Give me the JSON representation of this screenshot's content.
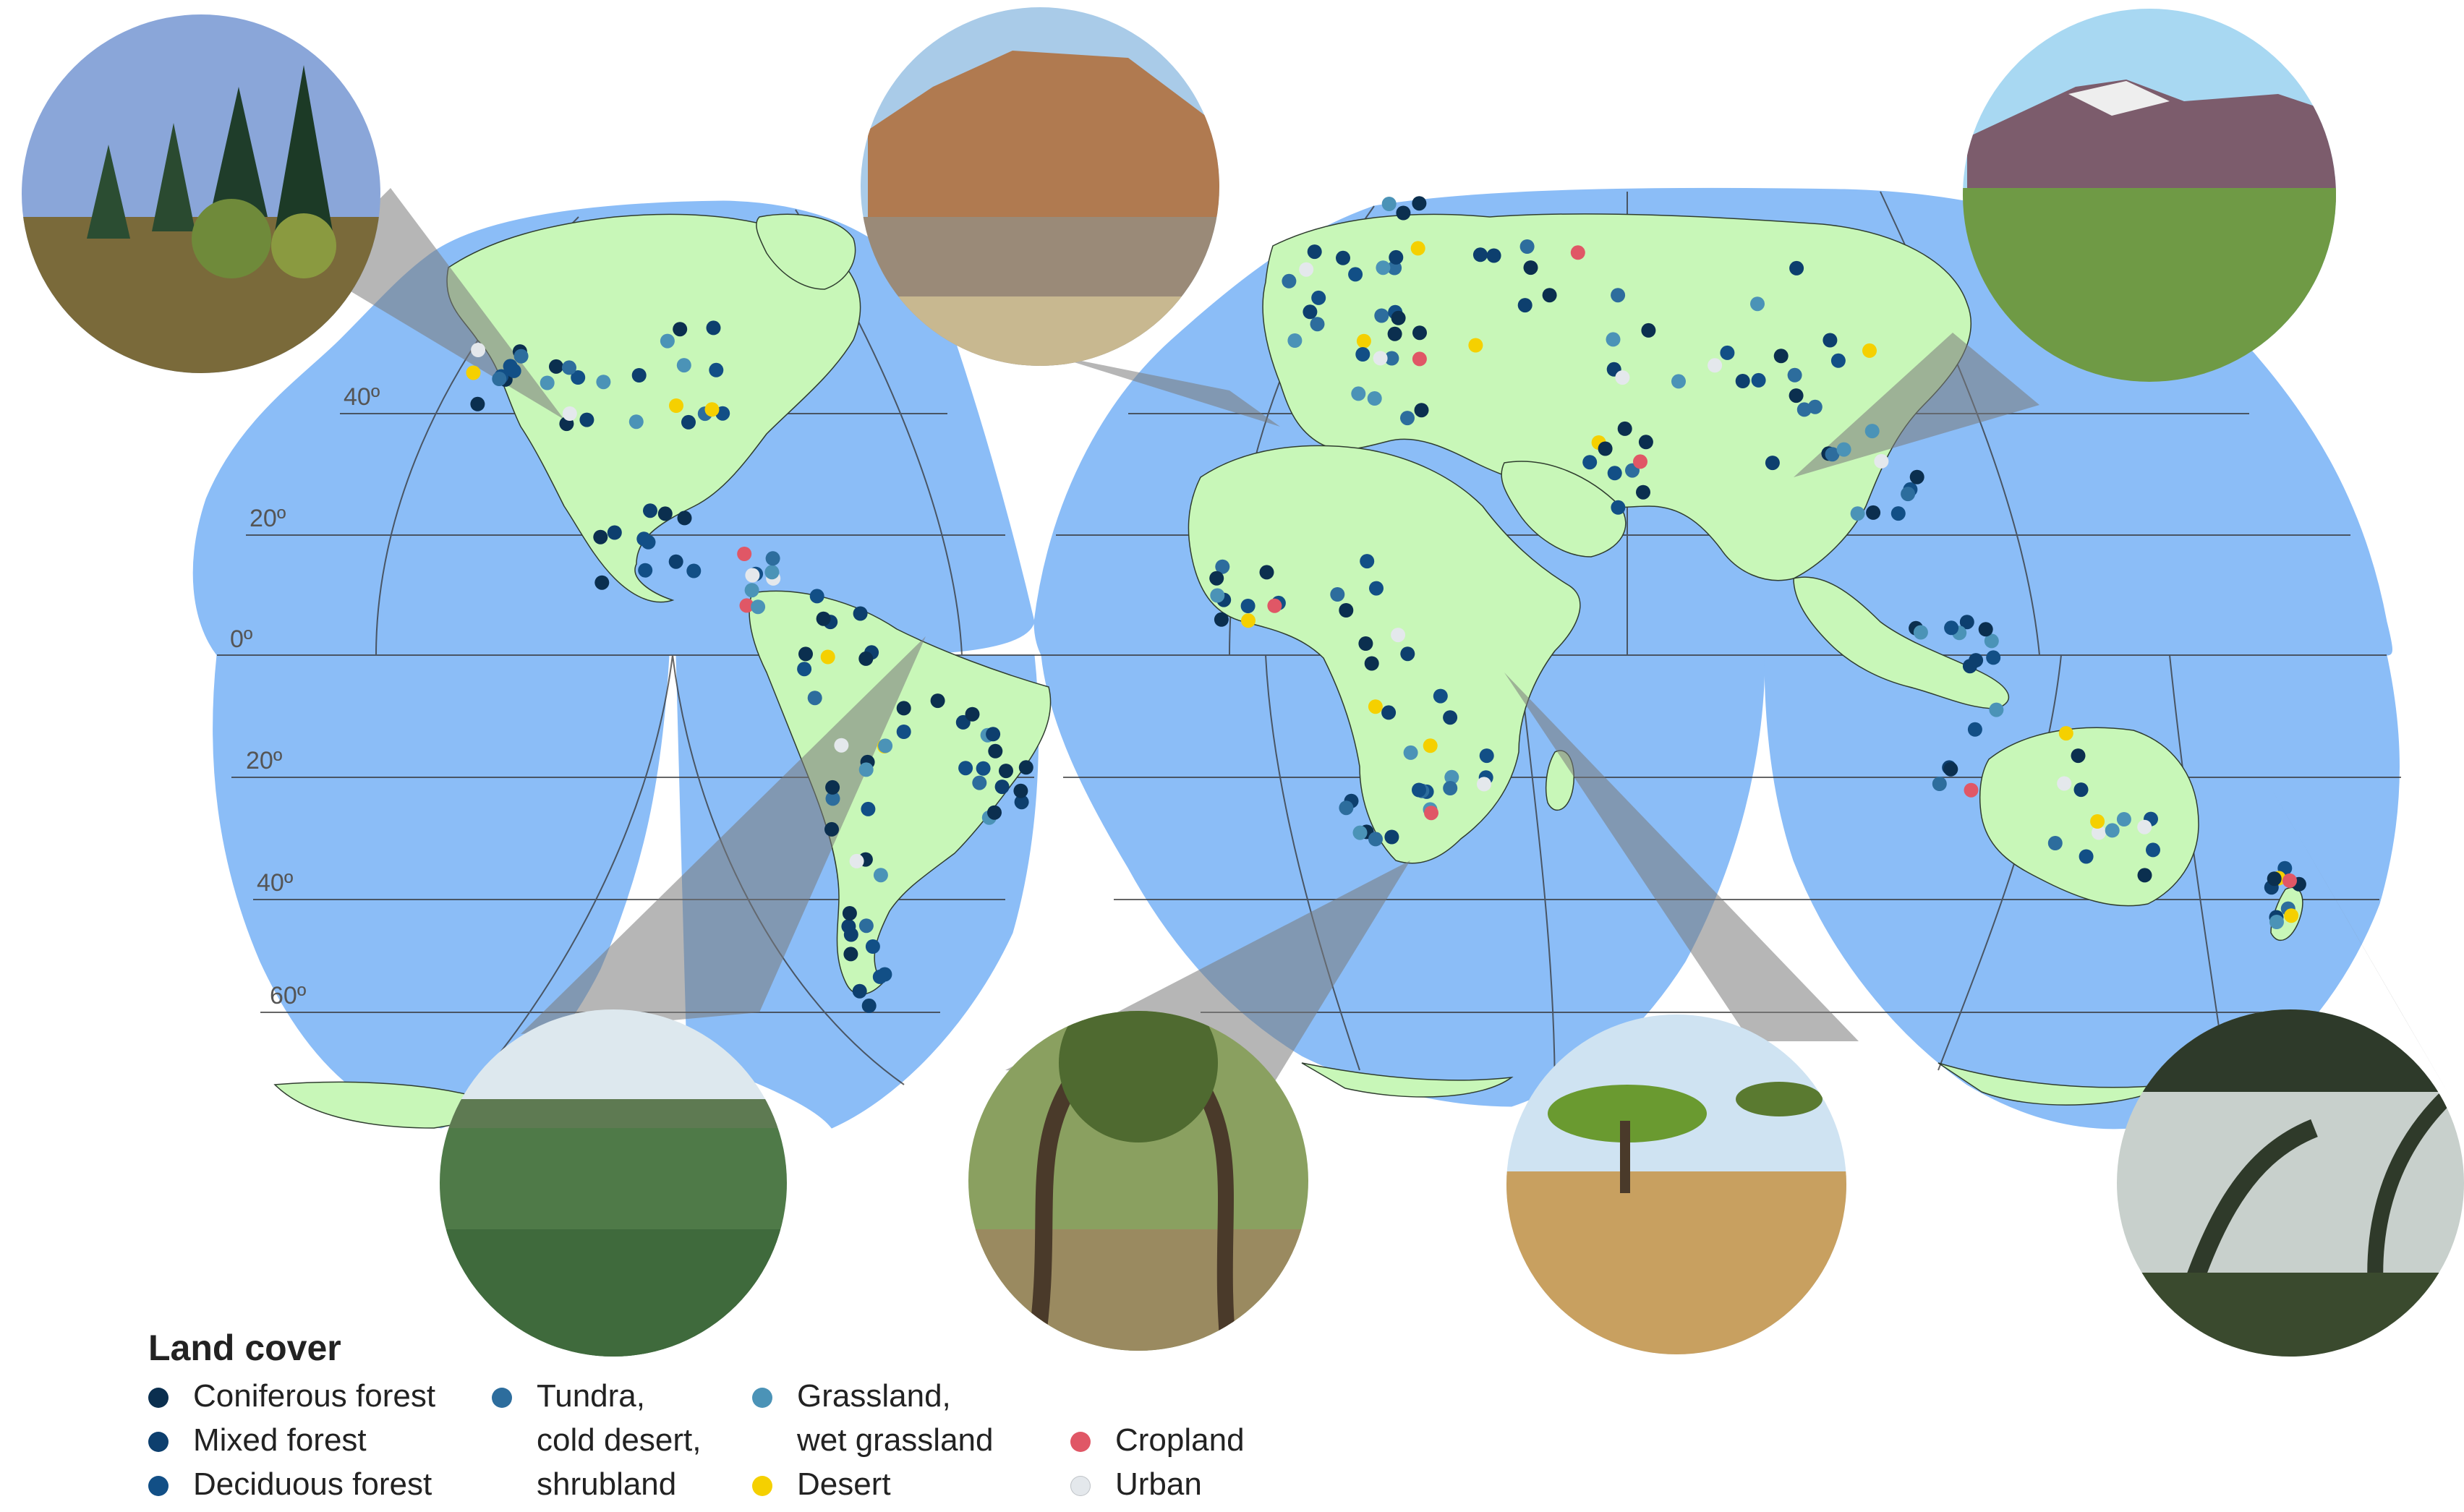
{
  "map": {
    "projection": "interrupted-goode-homolosine",
    "colors": {
      "ocean": "#8bbdf7",
      "land": "#c8f7b8",
      "graticule": "#333333",
      "callout": "#7a7a7a"
    },
    "latitude_labels": [
      {
        "id": "lat-40n",
        "text": "40º"
      },
      {
        "id": "lat-20n",
        "text": "20º"
      },
      {
        "id": "lat-0",
        "text": "0º"
      },
      {
        "id": "lat-20s",
        "text": "20º"
      },
      {
        "id": "lat-40s",
        "text": "40º"
      },
      {
        "id": "lat-60s",
        "text": "60º"
      }
    ],
    "photos": [
      {
        "id": "conifer-forest",
        "icon": "conifer-forest-photo"
      },
      {
        "id": "desert-cliffs",
        "icon": "desert-cliffs-photo"
      },
      {
        "id": "mountain-grassland",
        "icon": "mountain-grassland-photo"
      },
      {
        "id": "wet-grassland",
        "icon": "wet-grassland-photo"
      },
      {
        "id": "woodland",
        "icon": "woodland-photo"
      },
      {
        "id": "savanna",
        "icon": "savanna-photo"
      },
      {
        "id": "cloud-forest",
        "icon": "cloud-forest-photo"
      }
    ]
  },
  "legend": {
    "title": "Land cover",
    "items": [
      {
        "line1": "Coniferous forest",
        "line2": "",
        "line3": "",
        "color": "#0b2f4f"
      },
      {
        "line1": "Mixed forest",
        "line2": "",
        "line3": "",
        "color": "#0d3f6e"
      },
      {
        "line1": "Deciduous forest",
        "line2": "",
        "line3": "",
        "color": "#124f86"
      },
      {
        "line1": "Tundra,",
        "line2": "cold desert,",
        "line3": "shrubland",
        "color": "#2d6d9d"
      },
      {
        "line1": "Grassland,",
        "line2": "wet grassland",
        "line3": "",
        "color": "#4b93b7"
      },
      {
        "line1": "Desert",
        "line2": "",
        "line3": "",
        "color": "#f5d000"
      },
      {
        "line1": "Cropland",
        "line2": "",
        "line3": "",
        "color": "#e05766"
      },
      {
        "line1": "Urban",
        "line2": "",
        "line3": "",
        "color": "#e4e8ec"
      }
    ]
  }
}
